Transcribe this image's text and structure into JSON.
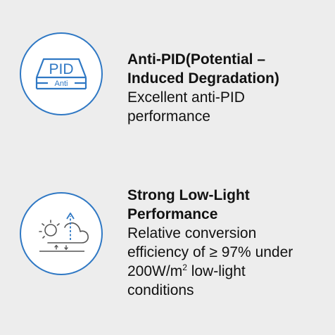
{
  "colors": {
    "background": "#ededed",
    "accent": "#2f78c4",
    "text": "#111111"
  },
  "features": [
    {
      "icon": "anti-pid-icon",
      "icon_text_primary": "PID",
      "icon_text_secondary": "Anti",
      "title_line_1": "Anti-PID(Potential –",
      "title_line_2": "Induced Degradation)",
      "description_line_1": "Excellent anti-PID",
      "description_line_2": "performance"
    },
    {
      "icon": "low-light-icon",
      "title_line_1": "Strong Low-Light",
      "title_line_2": "Performance",
      "description_line_1": "Relative conversion",
      "description_line_2": "efficiency of ≥ 97% under",
      "description_line_3_prefix": "200W/m",
      "description_line_3_sup": "2",
      "description_line_3_suffix": " low-light",
      "description_line_4": "conditions"
    }
  ]
}
